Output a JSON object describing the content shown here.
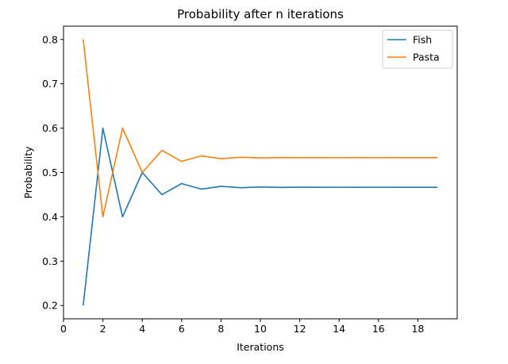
{
  "chart_data": {
    "type": "line",
    "title": "Probability after n iterations",
    "xlabel": "Iterations",
    "ylabel": "Probability",
    "xlim": [
      0,
      20
    ],
    "ylim": [
      0.17,
      0.83
    ],
    "xticks": [
      0,
      2,
      4,
      6,
      8,
      10,
      12,
      14,
      16,
      18
    ],
    "yticks": [
      0.2,
      0.3,
      0.4,
      0.5,
      0.6,
      0.7,
      0.8
    ],
    "grid": false,
    "legend_position": "top-right",
    "x": [
      1,
      2,
      3,
      4,
      5,
      6,
      7,
      8,
      9,
      10,
      11,
      12,
      13,
      14,
      15,
      16,
      17,
      18,
      19
    ],
    "series": [
      {
        "name": "Fish",
        "color": "#1f77b4",
        "values": [
          0.2,
          0.6,
          0.4,
          0.5,
          0.45,
          0.475,
          0.4625,
          0.46875,
          0.465625,
          0.4671875,
          0.46640625,
          0.466796875,
          0.4666015625,
          0.46669921875,
          0.466650390625,
          0.4666748046875,
          0.46666259765625,
          0.466668701171875,
          0.4666656494140625
        ]
      },
      {
        "name": "Pasta",
        "color": "#ff7f0e",
        "values": [
          0.8,
          0.4,
          0.6,
          0.5,
          0.55,
          0.525,
          0.5375,
          0.53125,
          0.534375,
          0.5328125,
          0.53359375,
          0.533203125,
          0.5333984375,
          0.53330078125,
          0.533349609375,
          0.5333251953125,
          0.53333740234375,
          0.533331298828125,
          0.5333343505859375
        ]
      }
    ]
  }
}
